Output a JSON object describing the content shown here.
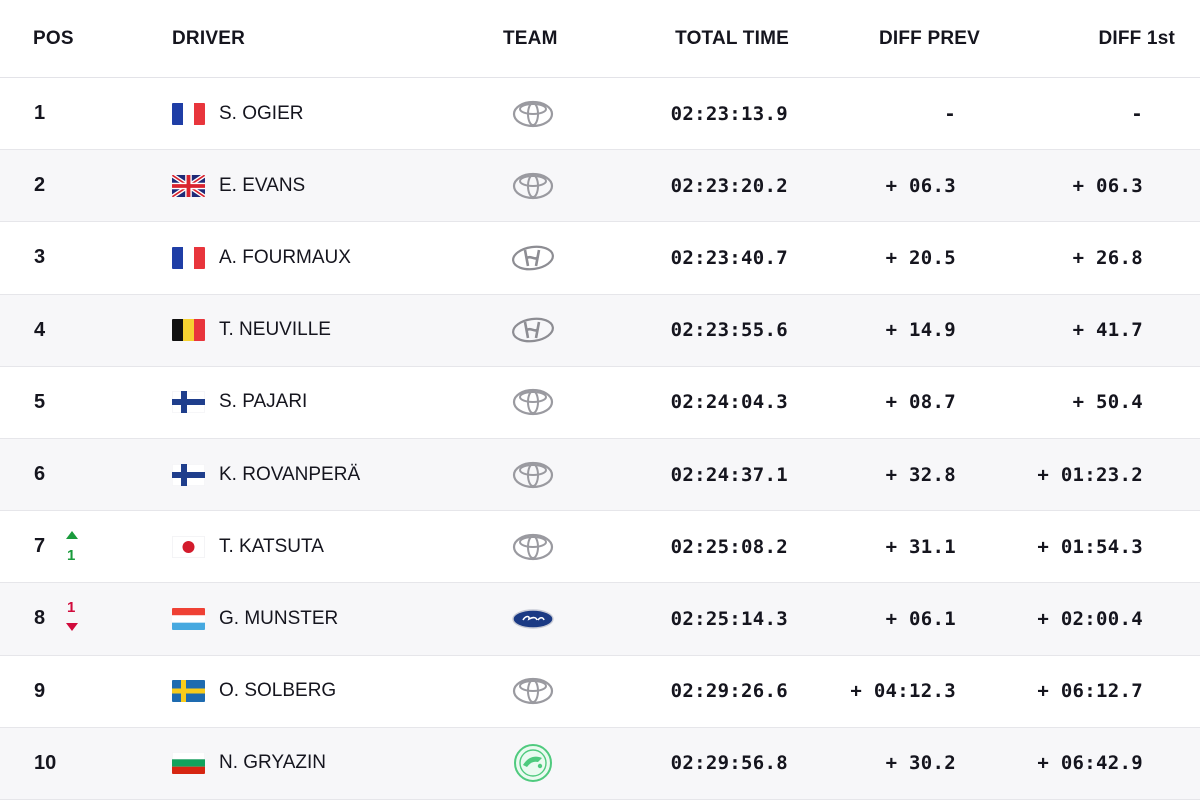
{
  "headers": {
    "pos": "POS",
    "driver": "DRIVER",
    "team": "TEAM",
    "total_time": "TOTAL TIME",
    "diff_prev": "DIFF PREV",
    "diff_1st": "DIFF 1st"
  },
  "rows": [
    {
      "pos": "1",
      "flag": "france-flag",
      "driver": "S. OGIER",
      "team": "toyota-logo-icon",
      "time": "02:23:13.9",
      "diff_prev": "-",
      "diff_1st": "-"
    },
    {
      "pos": "2",
      "flag": "uk-flag",
      "driver": "E. EVANS",
      "team": "toyota-logo-icon",
      "time": "02:23:20.2",
      "diff_prev": "+ 06.3",
      "diff_1st": "+ 06.3"
    },
    {
      "pos": "3",
      "flag": "france-flag",
      "driver": "A. FOURMAUX",
      "team": "hyundai-logo-icon",
      "time": "02:23:40.7",
      "diff_prev": "+ 20.5",
      "diff_1st": "+ 26.8"
    },
    {
      "pos": "4",
      "flag": "belgium-flag",
      "driver": "T. NEUVILLE",
      "team": "hyundai-logo-icon",
      "time": "02:23:55.6",
      "diff_prev": "+ 14.9",
      "diff_1st": "+ 41.7"
    },
    {
      "pos": "5",
      "flag": "finland-flag",
      "driver": "S. PAJARI",
      "team": "toyota-logo-icon",
      "time": "02:24:04.3",
      "diff_prev": "+ 08.7",
      "diff_1st": "+ 50.4"
    },
    {
      "pos": "6",
      "flag": "finland-flag",
      "driver": "K. ROVANPERÄ",
      "team": "toyota-logo-icon",
      "time": "02:24:37.1",
      "diff_prev": "+ 32.8",
      "diff_1st": "+ 01:23.2"
    },
    {
      "pos": "7",
      "flag": "japan-flag",
      "driver": "T. KATSUTA",
      "team": "toyota-logo-icon",
      "time": "02:25:08.2",
      "diff_prev": "+ 31.1",
      "diff_1st": "+ 01:54.3",
      "change": {
        "dir": "up",
        "value": "1"
      }
    },
    {
      "pos": "8",
      "flag": "luxembourg-flag",
      "driver": "G. MUNSTER",
      "team": "ford-logo-icon",
      "time": "02:25:14.3",
      "diff_prev": "+ 06.1",
      "diff_1st": "+ 02:00.4",
      "change": {
        "dir": "down",
        "value": "1"
      }
    },
    {
      "pos": "9",
      "flag": "sweden-flag",
      "driver": "O. SOLBERG",
      "team": "toyota-logo-icon",
      "time": "02:29:26.6",
      "diff_prev": "+ 04:12.3",
      "diff_1st": "+ 06:12.7"
    },
    {
      "pos": "10",
      "flag": "bulgaria-flag",
      "driver": "N. GRYAZIN",
      "team": "skoda-logo-icon",
      "time": "02:29:56.8",
      "diff_prev": "+ 30.2",
      "diff_1st": "+ 06:42.9"
    }
  ],
  "colors": {
    "text": "#15151e",
    "row_alt": "#f7f7f9",
    "border": "#e6e6ea",
    "position_up": "#1a9b3c",
    "position_down": "#d10b3c"
  }
}
